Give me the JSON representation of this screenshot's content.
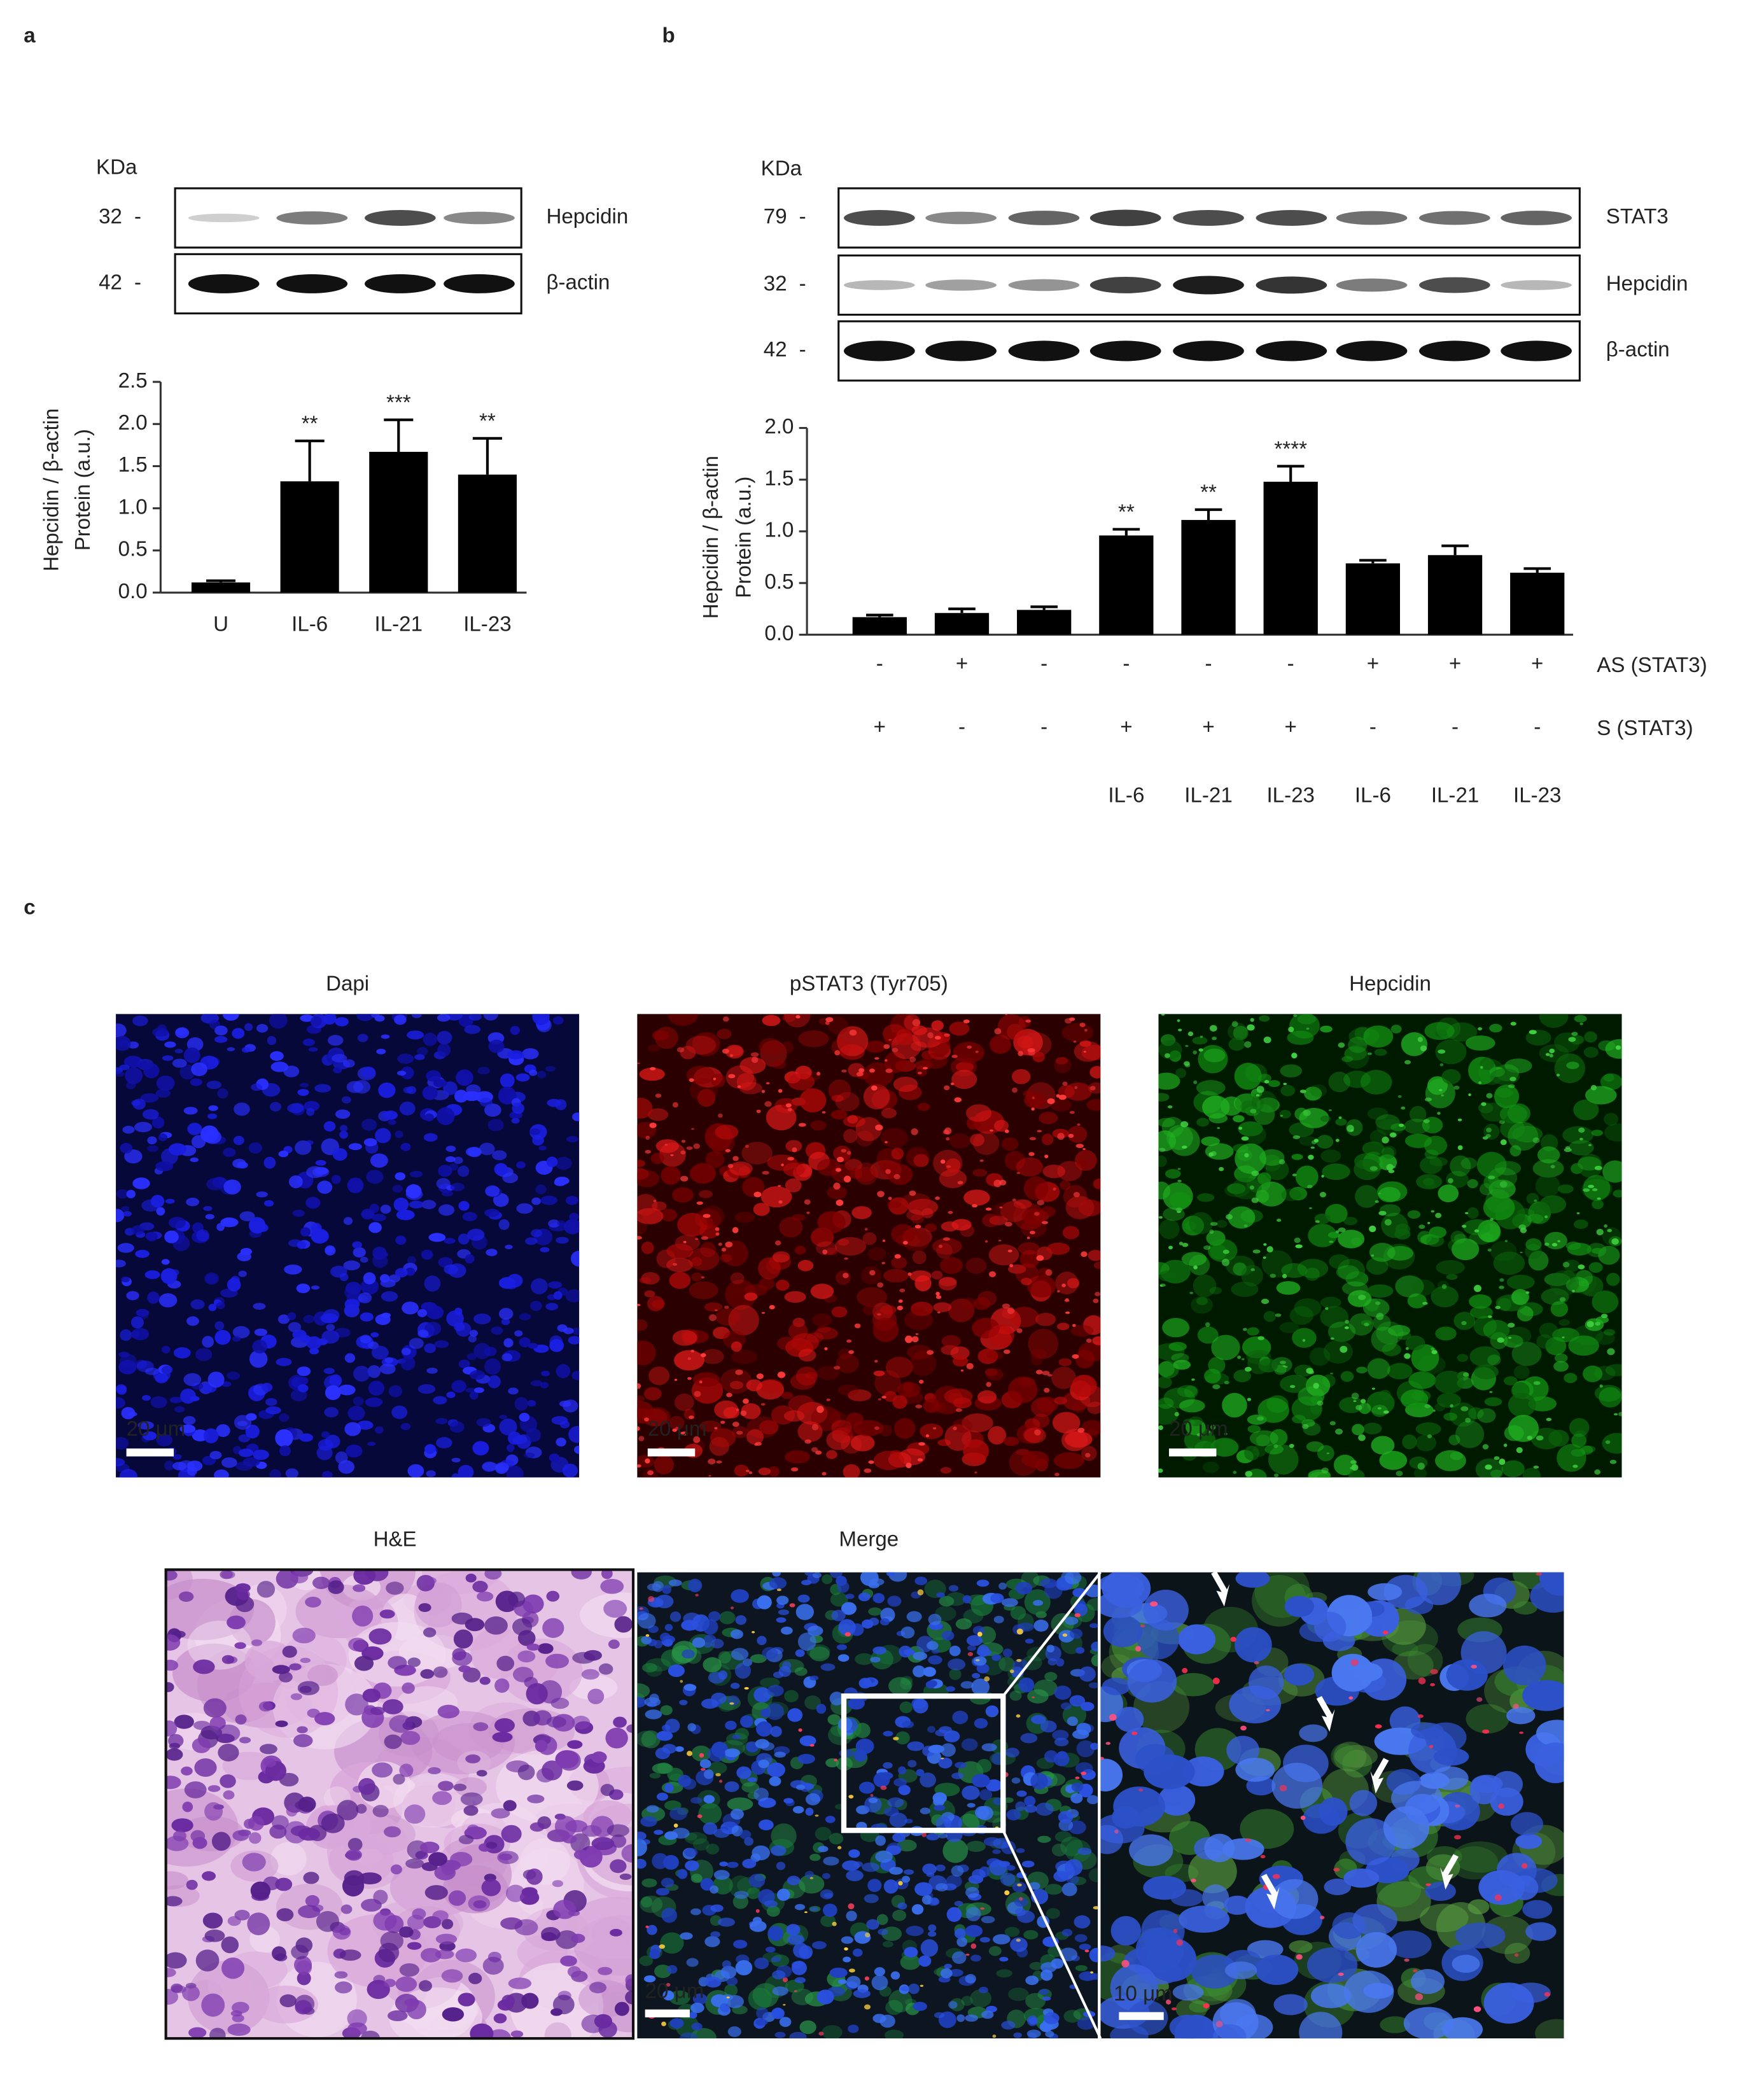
{
  "panel_labels": [
    "a",
    "b",
    "c"
  ],
  "blot_a": {
    "unit": "KDa",
    "rows": [
      {
        "size": "32",
        "label": "Hepcidin"
      },
      {
        "size": "42",
        "label": "β-actin"
      }
    ]
  },
  "blot_b": {
    "unit": "KDa",
    "rows": [
      {
        "size": "79",
        "label": "STAT3"
      },
      {
        "size": "32",
        "label": "Hepcidin"
      },
      {
        "size": "42",
        "label": "β-actin"
      }
    ]
  },
  "chart_data": [
    {
      "type": "bar",
      "ylabel": [
        "Hepcidin / β-actin",
        "Protein (a.u.)"
      ],
      "categories": [
        "U",
        "IL-6",
        "IL-21",
        "IL-23"
      ],
      "values": [
        0.12,
        1.32,
        1.67,
        1.4
      ],
      "errors": [
        0.02,
        0.48,
        0.38,
        0.43
      ],
      "annotations": [
        null,
        "**",
        "***",
        "**"
      ],
      "color": "#000000",
      "ylim": [
        0,
        2.5
      ],
      "yticks": [
        {
          "value": 0,
          "label": "0.0"
        },
        0.5,
        {
          "value": 1,
          "label": "1.0"
        },
        1.5,
        {
          "value": 2,
          "label": "2.0"
        },
        2.5
      ]
    },
    {
      "type": "bar",
      "ylabel": [
        "Hepcidin / β-actin",
        "Protein (a.u.)"
      ],
      "categories": [
        null,
        null,
        null,
        "IL-6",
        "IL-21",
        "IL-23",
        "IL-6",
        "IL-21",
        "IL-23"
      ],
      "values": [
        0.17,
        0.21,
        0.24,
        0.96,
        1.11,
        1.48,
        0.69,
        0.77,
        0.6
      ],
      "errors": [
        0.02,
        0.04,
        0.03,
        0.06,
        0.1,
        0.15,
        0.03,
        0.09,
        0.04
      ],
      "annotations": [
        null,
        null,
        null,
        "**",
        "**",
        "****",
        null,
        null,
        null
      ],
      "color": "#000000",
      "condition_rows": [
        {
          "name": "AS (STAT3)",
          "values": [
            "-",
            "+",
            "-",
            "-",
            "-",
            "-",
            "+",
            "+",
            "+"
          ]
        },
        {
          "name": "S (STAT3)",
          "values": [
            "+",
            "-",
            "-",
            "+",
            "+",
            "+",
            "-",
            "-",
            "-"
          ]
        }
      ],
      "ylim": [
        0,
        2
      ],
      "yticks": [
        {
          "value": 0,
          "label": "0.0"
        },
        0.5,
        {
          "value": 1,
          "label": "1.0"
        },
        1.5,
        {
          "value": 2,
          "label": "2.0"
        }
      ]
    }
  ],
  "images": {
    "panels": [
      {
        "title": "Dapi",
        "scale": "20 μm"
      },
      {
        "title": "pSTAT3 (Tyr705)",
        "scale": "20 μm"
      },
      {
        "title": "Hepcidin",
        "scale": "20 μm"
      }
    ],
    "he": {
      "title": "H&E"
    },
    "merge": {
      "title": "Merge",
      "scale": "20 μm",
      "zoom_scale": "10 μm"
    }
  }
}
